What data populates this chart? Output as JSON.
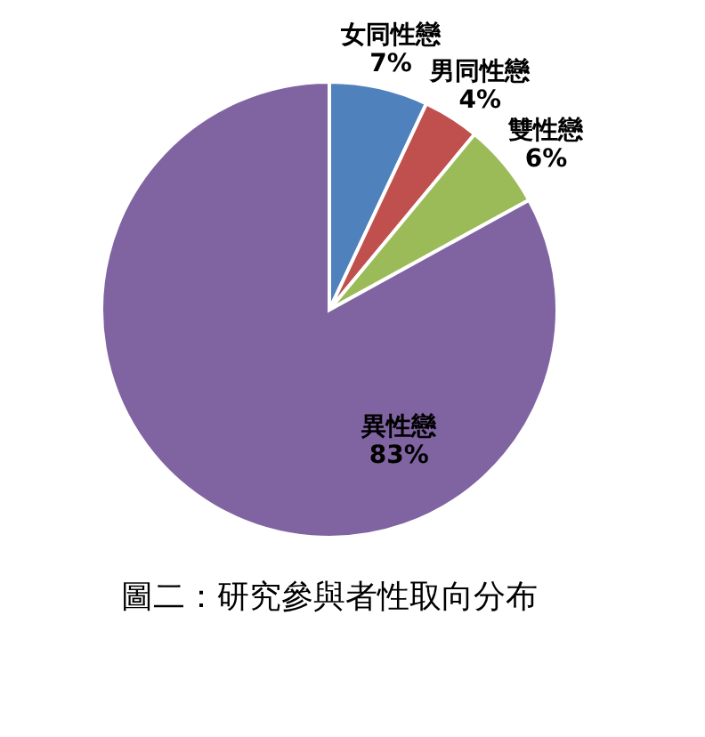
{
  "chart_data": {
    "type": "pie",
    "title": "圖二：研究參與者性取向分布",
    "categories": [
      "女同性戀",
      "男同性戀",
      "雙性戀",
      "異性戀"
    ],
    "values": [
      7,
      4,
      6,
      83
    ],
    "value_labels": [
      "7%",
      "4%",
      "6%",
      "83%"
    ],
    "colors": [
      "#4f81bd",
      "#c0504d",
      "#9bbb59",
      "#8064a2"
    ],
    "legend": false
  }
}
